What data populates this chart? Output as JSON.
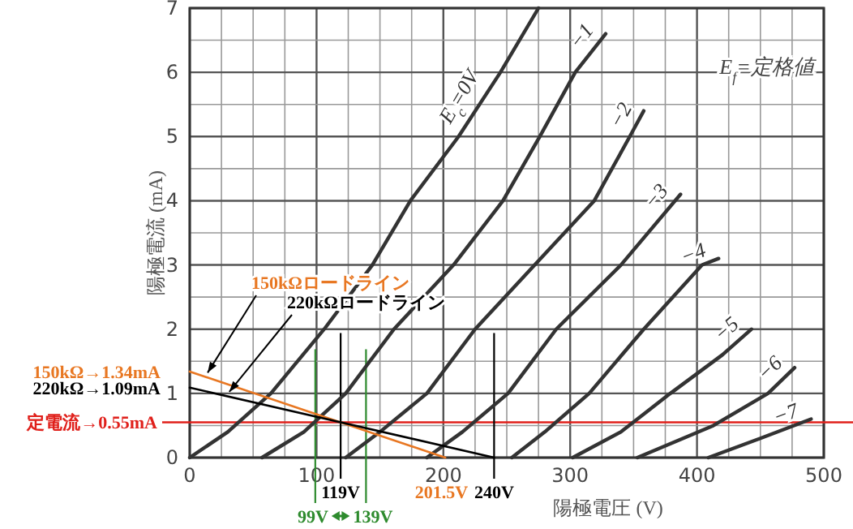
{
  "chart_data": {
    "type": "line",
    "xlabel": "陽極電圧 (V)",
    "ylabel": "陽極電流 (mA)",
    "xlim": [
      0,
      500
    ],
    "ylim": [
      0,
      7
    ],
    "xticks": [
      0,
      100,
      200,
      300,
      400,
      500
    ],
    "yticks": [
      0,
      1,
      2,
      3,
      4,
      5,
      6,
      7
    ],
    "grid": true,
    "legend": false,
    "marker": "none",
    "line_style": "solid",
    "series": [
      {
        "name": "E$_{c}$=0V",
        "color": "#333333",
        "x": [
          0,
          30,
          64,
          106,
          144,
          174,
          212,
          245,
          275
        ],
        "values": [
          0,
          0.4,
          1,
          2,
          3,
          4,
          5,
          6,
          7
        ]
      },
      {
        "name": "−1",
        "color": "#333333",
        "x": [
          57,
          90,
          123,
          161,
          208,
          247,
          276,
          304,
          328
        ],
        "values": [
          0,
          0.4,
          1,
          2,
          3,
          4,
          5,
          6,
          6.6
        ]
      },
      {
        "name": "−2",
        "color": "#333333",
        "x": [
          123,
          150,
          187,
          225,
          272,
          319,
          347,
          358
        ],
        "values": [
          0,
          0.4,
          1,
          2,
          3,
          4,
          5,
          5.4
        ]
      },
      {
        "name": "−3",
        "color": "#333333",
        "x": [
          187,
          215,
          251,
          289,
          340,
          387
        ],
        "values": [
          0,
          0.4,
          1,
          2,
          3,
          4.1
        ]
      },
      {
        "name": "−4",
        "color": "#333333",
        "x": [
          254,
          280,
          315,
          358,
          404,
          417
        ],
        "values": [
          0,
          0.4,
          1,
          2,
          3,
          3.1
        ]
      },
      {
        "name": "−5",
        "color": "#333333",
        "x": [
          302,
          340,
          379,
          420,
          443
        ],
        "values": [
          0,
          0.4,
          1,
          1.6,
          2
        ]
      },
      {
        "name": "−6",
        "color": "#333333",
        "x": [
          353,
          413,
          456,
          477
        ],
        "values": [
          0,
          0.5,
          1,
          1.4
        ]
      },
      {
        "name": "−7",
        "color": "#333333",
        "x": [
          409,
          450,
          490
        ],
        "values": [
          0,
          0.3,
          0.6
        ]
      },
      {
        "name": "150kΩロードライン",
        "color": "#e87722",
        "x": [
          0,
          201.5
        ],
        "values": [
          1.34,
          0
        ]
      },
      {
        "name": "220kΩロードライン",
        "color": "#000000",
        "x": [
          0,
          240
        ],
        "values": [
          1.09,
          0
        ]
      }
    ],
    "ref_lines": [
      {
        "axis": "y",
        "value": 0.55,
        "label": "定電流→0.55mA",
        "color": "#e0201b"
      },
      {
        "axis": "x",
        "value": 99,
        "label": "99V",
        "color": "#2e8b2e"
      },
      {
        "axis": "x",
        "value": 139,
        "label": "139V",
        "color": "#2e8b2e"
      },
      {
        "axis": "x",
        "value": 119,
        "label": "119V",
        "color": "#000000"
      },
      {
        "axis": "x",
        "value": 240,
        "label": "240V",
        "color": "#000000"
      }
    ],
    "annotations": [
      "E$_{f}$=定格値",
      "150kΩ→1.34mA",
      "220kΩ→1.09mA",
      {
        "text": "201.5V",
        "x": 201.5,
        "y": 0
      }
    ]
  }
}
